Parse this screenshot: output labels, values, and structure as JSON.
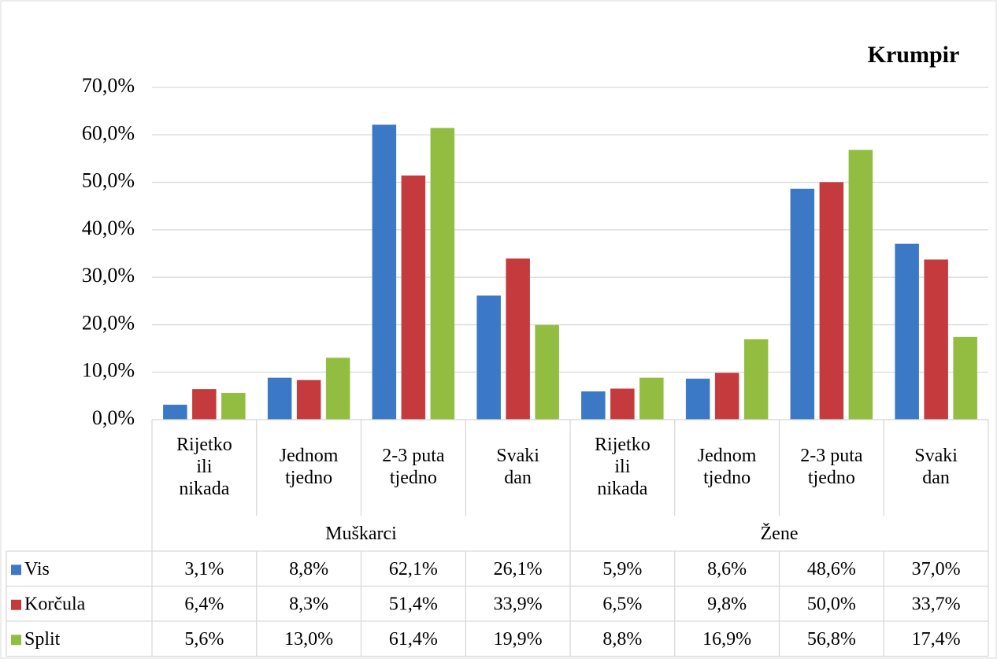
{
  "chart_data": {
    "type": "bar",
    "title": "Krumpir",
    "categories": [
      "Rijetko\nili\nnikada",
      "Jednom\ntjedno",
      "2-3 puta\ntjedno",
      "Svaki\ndan",
      "Rijetko\nili\nnikada",
      "Jednom\ntjedno",
      "2-3 puta\ntjedno",
      "Svaki\ndan"
    ],
    "groups": [
      "Muškarci",
      "Žene"
    ],
    "series": [
      {
        "name": "Vis",
        "color": "#3b78c6",
        "values": [
          3.1,
          8.8,
          62.1,
          26.1,
          5.9,
          8.6,
          48.6,
          37.0
        ],
        "value_labels": [
          "3,1%",
          "8,8%",
          "62,1%",
          "26,1%",
          "5,9%",
          "8,6%",
          "48,6%",
          "37,0%"
        ]
      },
      {
        "name": "Korčula",
        "color": "#c53a3c",
        "values": [
          6.4,
          8.3,
          51.4,
          33.9,
          6.5,
          9.8,
          50.0,
          33.7
        ],
        "value_labels": [
          "6,4%",
          "8,3%",
          "51,4%",
          "33,9%",
          "6,5%",
          "9,8%",
          "50,0%",
          "33,7%"
        ]
      },
      {
        "name": "Split",
        "color": "#92bd41",
        "values": [
          5.6,
          13.0,
          61.4,
          19.9,
          8.8,
          16.9,
          56.8,
          17.4
        ],
        "value_labels": [
          "5,6%",
          "13,0%",
          "61,4%",
          "19,9%",
          "8,8%",
          "16,9%",
          "56,8%",
          "17,4%"
        ]
      }
    ],
    "ylim": [
      0,
      70
    ],
    "yticks": [
      {
        "value": 0,
        "label": "0,0%"
      },
      {
        "value": 10,
        "label": "10,0%"
      },
      {
        "value": 20,
        "label": "20,0%"
      },
      {
        "value": 30,
        "label": "30,0%"
      },
      {
        "value": 40,
        "label": "40,0%"
      },
      {
        "value": 50,
        "label": "50,0%"
      },
      {
        "value": 60,
        "label": "60,0%"
      },
      {
        "value": 70,
        "label": "70,0%"
      }
    ],
    "grid": true
  }
}
